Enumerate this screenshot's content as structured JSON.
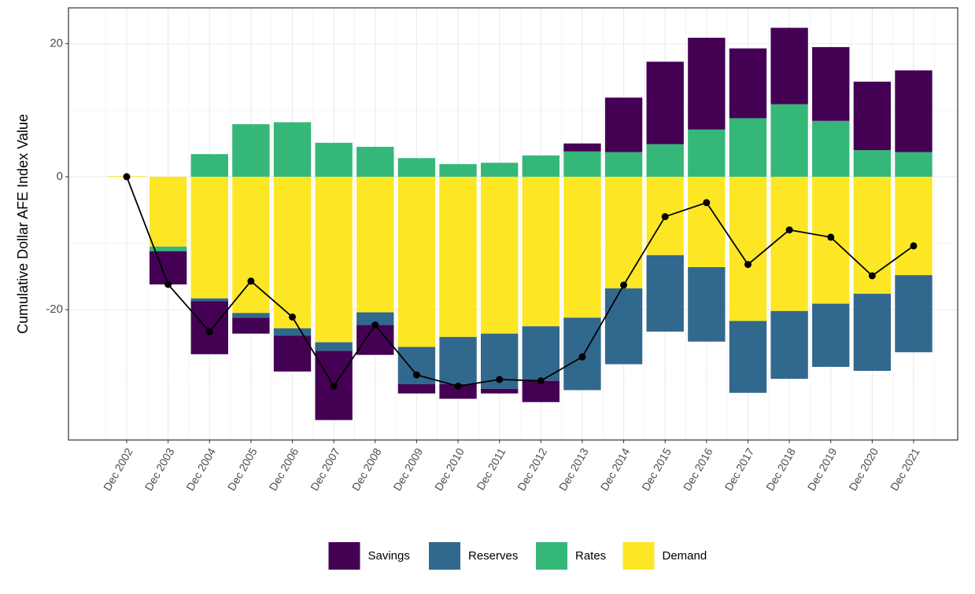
{
  "chart_data": {
    "type": "bar",
    "stacked": true,
    "y_label": "Cumulative Dollar AFE Index Value",
    "categories": [
      "Dec 2002",
      "Dec 2003",
      "Dec 2004",
      "Dec 2005",
      "Dec 2006",
      "Dec 2007",
      "Dec 2008",
      "Dec 2009",
      "Dec 2010",
      "Dec 2011",
      "Dec 2012",
      "Dec 2013",
      "Dec 2014",
      "Dec 2015",
      "Dec 2016",
      "Dec 2017",
      "Dec 2018",
      "Dec 2019",
      "Dec 2020",
      "Dec 2021"
    ],
    "series": [
      {
        "name": "Savings",
        "color": "#440154",
        "values": [
          0,
          -5.0,
          -8.0,
          -2.4,
          -5.4,
          -10.4,
          -4.5,
          -1.4,
          -2.2,
          -0.7,
          -3.2,
          1.2,
          8.2,
          12.4,
          13.8,
          10.5,
          11.5,
          11.1,
          10.3,
          12.3
        ]
      },
      {
        "name": "Reserves",
        "color": "#31688E",
        "values": [
          0,
          0,
          -0.4,
          -0.7,
          -1.1,
          -1.3,
          -1.9,
          -5.6,
          -7.1,
          -8.3,
          -8.2,
          -10.9,
          -11.4,
          -11.5,
          -11.2,
          -10.8,
          -10.2,
          -9.5,
          -11.6,
          -11.6
        ]
      },
      {
        "name": "Rates",
        "color": "#35B779",
        "values": [
          0,
          -0.7,
          3.4,
          7.9,
          8.2,
          5.1,
          4.5,
          2.8,
          1.9,
          2.1,
          3.2,
          3.8,
          3.7,
          4.9,
          7.1,
          8.8,
          10.9,
          8.4,
          4.0,
          3.7
        ]
      },
      {
        "name": "Demand",
        "color": "#FDE725",
        "values": [
          0.1,
          -10.5,
          -18.3,
          -20.5,
          -22.8,
          -24.9,
          -20.4,
          -25.6,
          -24.1,
          -23.6,
          -22.5,
          -21.2,
          -16.8,
          -11.8,
          -13.6,
          -21.7,
          -20.2,
          -19.1,
          -17.6,
          -14.8
        ]
      }
    ],
    "line": {
      "color": "#000000",
      "values": [
        0,
        -16.2,
        -23.3,
        -15.7,
        -21.1,
        -31.5,
        -22.3,
        -29.8,
        -31.5,
        -30.5,
        -30.7,
        -27.1,
        -16.3,
        -6.0,
        -3.9,
        -13.2,
        -8.0,
        -9.1,
        -14.9,
        -10.4
      ]
    },
    "ylim": [
      -39.6,
      25.4
    ],
    "yticks": [
      -20,
      0,
      20
    ],
    "minor_yticks": [
      -30,
      -10,
      10
    ],
    "grid": true,
    "legend": "bottom"
  }
}
